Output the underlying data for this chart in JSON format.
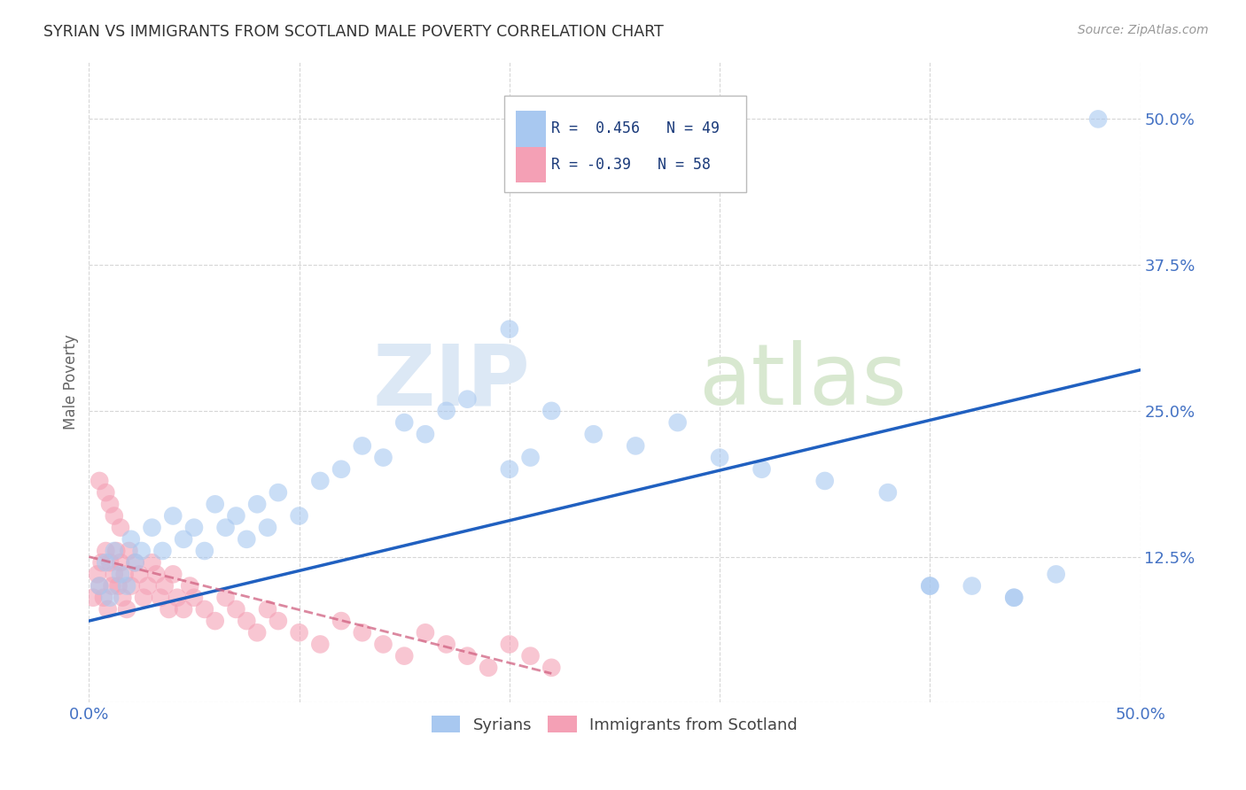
{
  "title": "SYRIAN VS IMMIGRANTS FROM SCOTLAND MALE POVERTY CORRELATION CHART",
  "source": "Source: ZipAtlas.com",
  "ylabel": "Male Poverty",
  "xlim": [
    0.0,
    0.5
  ],
  "ylim": [
    0.0,
    0.55
  ],
  "grid_color": "#cccccc",
  "background_color": "#ffffff",
  "syrians_color": "#a8c8f0",
  "scotland_color": "#f4a0b5",
  "syrians_R": 0.456,
  "syrians_N": 49,
  "scotland_R": -0.39,
  "scotland_N": 58,
  "syrians_line_color": "#2060c0",
  "scotland_line_color": "#d06080",
  "legend_label_blue": "Syrians",
  "legend_label_pink": "Immigrants from Scotland",
  "syrians_line_x0": 0.0,
  "syrians_line_y0": 0.07,
  "syrians_line_x1": 0.5,
  "syrians_line_y1": 0.285,
  "scotland_line_x0": 0.0,
  "scotland_line_y0": 0.125,
  "scotland_line_x1": 0.22,
  "scotland_line_y1": 0.025,
  "syrians_x": [
    0.005,
    0.008,
    0.01,
    0.012,
    0.015,
    0.018,
    0.02,
    0.022,
    0.025,
    0.03,
    0.035,
    0.04,
    0.045,
    0.05,
    0.055,
    0.06,
    0.065,
    0.07,
    0.075,
    0.08,
    0.085,
    0.09,
    0.1,
    0.11,
    0.12,
    0.13,
    0.14,
    0.15,
    0.16,
    0.17,
    0.18,
    0.2,
    0.22,
    0.24,
    0.26,
    0.28,
    0.3,
    0.32,
    0.35,
    0.38,
    0.4,
    0.42,
    0.44,
    0.46,
    0.48,
    0.4,
    0.44,
    0.2,
    0.21
  ],
  "syrians_y": [
    0.1,
    0.12,
    0.09,
    0.13,
    0.11,
    0.1,
    0.14,
    0.12,
    0.13,
    0.15,
    0.13,
    0.16,
    0.14,
    0.15,
    0.13,
    0.17,
    0.15,
    0.16,
    0.14,
    0.17,
    0.15,
    0.18,
    0.16,
    0.19,
    0.2,
    0.22,
    0.21,
    0.24,
    0.23,
    0.25,
    0.26,
    0.32,
    0.25,
    0.23,
    0.22,
    0.24,
    0.21,
    0.2,
    0.19,
    0.18,
    0.1,
    0.1,
    0.09,
    0.11,
    0.5,
    0.1,
    0.09,
    0.2,
    0.21
  ],
  "scotland_x": [
    0.002,
    0.004,
    0.005,
    0.006,
    0.007,
    0.008,
    0.009,
    0.01,
    0.011,
    0.012,
    0.013,
    0.014,
    0.015,
    0.016,
    0.017,
    0.018,
    0.019,
    0.02,
    0.022,
    0.024,
    0.026,
    0.028,
    0.03,
    0.032,
    0.034,
    0.036,
    0.038,
    0.04,
    0.042,
    0.045,
    0.048,
    0.05,
    0.055,
    0.06,
    0.065,
    0.07,
    0.075,
    0.08,
    0.085,
    0.09,
    0.1,
    0.11,
    0.12,
    0.13,
    0.14,
    0.15,
    0.16,
    0.17,
    0.18,
    0.19,
    0.2,
    0.21,
    0.22,
    0.005,
    0.008,
    0.01,
    0.012,
    0.015
  ],
  "scotland_y": [
    0.09,
    0.11,
    0.1,
    0.12,
    0.09,
    0.13,
    0.08,
    0.12,
    0.1,
    0.11,
    0.13,
    0.1,
    0.12,
    0.09,
    0.11,
    0.08,
    0.13,
    0.1,
    0.12,
    0.11,
    0.09,
    0.1,
    0.12,
    0.11,
    0.09,
    0.1,
    0.08,
    0.11,
    0.09,
    0.08,
    0.1,
    0.09,
    0.08,
    0.07,
    0.09,
    0.08,
    0.07,
    0.06,
    0.08,
    0.07,
    0.06,
    0.05,
    0.07,
    0.06,
    0.05,
    0.04,
    0.06,
    0.05,
    0.04,
    0.03,
    0.05,
    0.04,
    0.03,
    0.19,
    0.18,
    0.17,
    0.16,
    0.15
  ]
}
